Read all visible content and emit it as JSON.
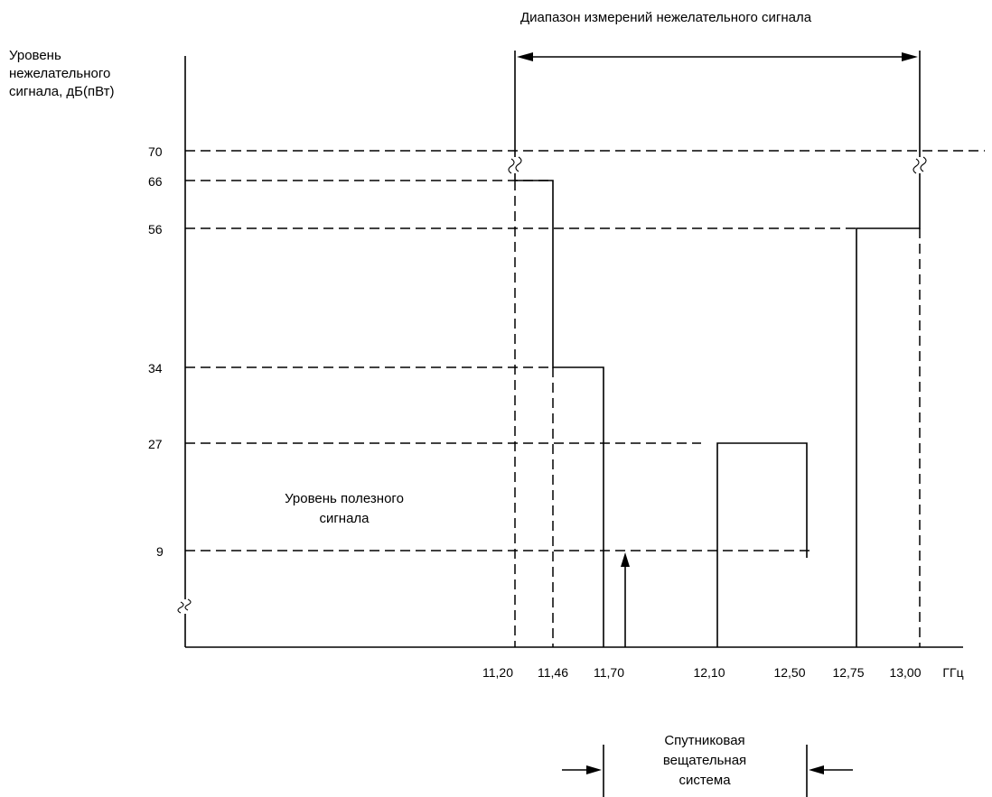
{
  "diagram": {
    "range_title": "Диапазон измерений нежелательного сигнала",
    "y_axis_title": [
      "Уровень",
      "нежелательного",
      "сигнала, дБ(пВт)"
    ],
    "y_ticks": [
      "70",
      "66",
      "56",
      "34",
      "27",
      "9"
    ],
    "x_ticks": [
      "11,20",
      "11,46",
      "11,70",
      "12,10",
      "12,50",
      "12,75",
      "13,00"
    ],
    "x_unit": "ГГц",
    "useful_signal_label": [
      "Уровень полезного",
      "сигнала"
    ],
    "bss_label": [
      "Спутниковая",
      "вещательная",
      "система"
    ]
  },
  "chart_data": {
    "type": "step",
    "xlabel": "ГГц",
    "ylabel": "Уровень нежелательного сигнала, дБ(пВт)",
    "x_range_measured": [
      "11,20",
      "13,00"
    ],
    "mask_segments": [
      {
        "from_ghz": 11.2,
        "to_ghz": 11.46,
        "level_db_pw": 66
      },
      {
        "from_ghz": 11.46,
        "to_ghz": 11.7,
        "level_db_pw": 34
      },
      {
        "from_ghz": 12.1,
        "to_ghz": 12.5,
        "level_db_pw": 27
      },
      {
        "from_ghz": 12.75,
        "to_ghz": 13.0,
        "level_db_pw": 56
      }
    ],
    "useful_signal": {
      "freq_ghz": 11.7,
      "level_db_pw": 9
    },
    "reference_level_db_pw": 70,
    "bss_band_ghz": [
      11.7,
      12.5
    ]
  }
}
